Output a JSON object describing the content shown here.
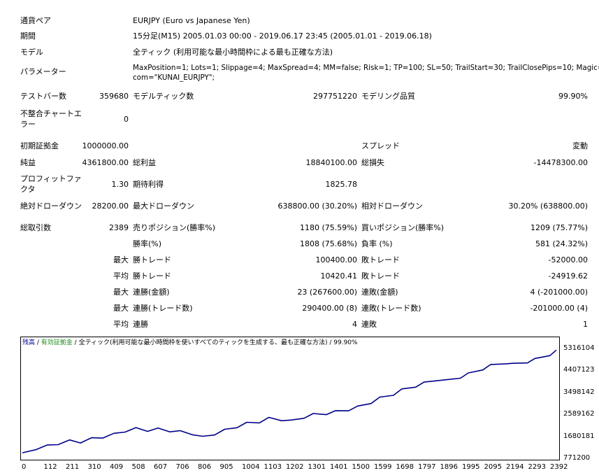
{
  "report": {
    "pair_label": "通貨ペア",
    "pair_value": "EURJPY (Euro vs Japanese Yen)",
    "period_label": "期間",
    "period_value": "15分足(M15) 2005.01.03 00:00 - 2019.06.17 23:45 (2005.01.01 - 2019.06.18)",
    "model_label": "モデル",
    "model_value": "全ティック (利用可能な最小時間枠による最も正確な方法)",
    "params_label": "パラメーター",
    "params_line1": "MaxPosition=1; Lots=1; Slippage=4; MaxSpread=4; MM=false; Risk=1; TP=100; SL=50; TrailStart=30; TrailClosePips=10; Magic=1011;",
    "params_line2": "com=\"KUNAI_EURJPY\";",
    "bars_label": "テストバー数",
    "bars_value": "359680",
    "ticks_label": "モデルティック数",
    "ticks_value": "297751220",
    "quality_label": "モデリング品質",
    "quality_value": "99.90%",
    "mismatch_label_1": "不整合チャートエ",
    "mismatch_label_2": "ラー",
    "mismatch_value": "0",
    "deposit_label": "初期証拠金",
    "deposit_value": "1000000.00",
    "spread_label": "スプレッド",
    "spread_value": "変動",
    "net_label": "純益",
    "net_value": "4361800.00",
    "gross_profit_label": "総利益",
    "gross_profit_value": "18840100.00",
    "gross_loss_label": "総損失",
    "gross_loss_value": "-14478300.00",
    "pf_label_1": "プロフィットファ",
    "pf_label_2": "クタ",
    "pf_value": "1.30",
    "expected_label": "期待利得",
    "expected_value": "1825.78",
    "abs_dd_label": "絶対ドローダウン",
    "abs_dd_value": "28200.00",
    "max_dd_label": "最大ドローダウン",
    "max_dd_value": "638800.00 (30.20%)",
    "rel_dd_label": "相対ドローダウン",
    "rel_dd_value": "30.20% (638800.00)",
    "trades_label": "総取引数",
    "trades_value": "2389",
    "short_label": "売りポジション(勝率%)",
    "short_value": "1180 (75.59%)",
    "long_label": "買いポジション(勝率%)",
    "long_value": "1209 (75.77%)",
    "winrate_label": "勝率(%)",
    "winrate_value": "1808 (75.68%)",
    "lossrate_label": "負率 (%)",
    "lossrate_value": "581 (24.32%)",
    "max_label": "最大",
    "avg_label": "平均",
    "win_trade_label": "勝トレード",
    "loss_trade_label": "敗トレード",
    "largest_win_value": "100400.00",
    "largest_loss_value": "-52000.00",
    "avg_win_value": "10420.41",
    "avg_loss_value": "-24919.62",
    "consec_win_money_label": "連勝(金額)",
    "consec_win_money_value": "23 (267600.00)",
    "consec_loss_money_label": "連敗(金額)",
    "consec_loss_money_value": "4 (-201000.00)",
    "consec_win_count_label": "連勝(トレード数)",
    "consec_win_count_value": "290400.00 (8)",
    "consec_loss_count_label": "連敗(トレード数)",
    "consec_loss_count_value": "-201000.00 (4)",
    "avg_consec_win_label": "連勝",
    "avg_consec_win_value": "4",
    "avg_consec_loss_label": "連敗",
    "avg_consec_loss_value": "1"
  },
  "chart_legend": {
    "balance": "残高",
    "sep1": " / ",
    "equity": "有効証拠金",
    "sep2": " / ",
    "rest": "全ティック(利用可能な最小時間枠を使いすべてのティックを生成する、最も正確な方法) / 99.90%"
  },
  "colors": {
    "balance_line": "#00008b",
    "equity_text": "#228b22"
  },
  "chart_data": {
    "type": "line",
    "title": "",
    "xlabel": "",
    "ylabel": "",
    "x_ticks": [
      "0",
      "112",
      "211",
      "310",
      "409",
      "508",
      "607",
      "706",
      "806",
      "905",
      "1004",
      "1103",
      "1202",
      "1301",
      "1401",
      "1500",
      "1599",
      "1698",
      "1797",
      "1896",
      "1995",
      "2095",
      "2194",
      "2293",
      "2392"
    ],
    "y_ticks": [
      "5316104",
      "4407123",
      "3498142",
      "2589162",
      "1680181",
      "771200"
    ],
    "xlim": [
      0,
      2389
    ],
    "ylim": [
      771200,
      5316104
    ],
    "series": [
      {
        "x": [
          0,
          60,
          112,
          160,
          211,
          260,
          310,
          360,
          409,
          460,
          508,
          560,
          607,
          660,
          706,
          760,
          806,
          860,
          905,
          960,
          1004,
          1060,
          1103,
          1160,
          1202,
          1260,
          1301,
          1360,
          1401,
          1460,
          1500,
          1560,
          1599,
          1660,
          1698,
          1760,
          1797,
          1860,
          1896,
          1960,
          1995,
          2060,
          2095,
          2160,
          2194,
          2260,
          2293,
          2360,
          2389
        ],
        "y": [
          1000000,
          1170000,
          1280000,
          1380000,
          1490000,
          1450000,
          1580000,
          1650000,
          1760000,
          1900000,
          2000000,
          1930000,
          1980000,
          1910000,
          1870000,
          1790000,
          1640000,
          1780000,
          1930000,
          2080000,
          2220000,
          2280000,
          2420000,
          2370000,
          2310000,
          2470000,
          2580000,
          2620000,
          2700000,
          2780000,
          2890000,
          3080000,
          3260000,
          3420000,
          3600000,
          3760000,
          3880000,
          4030000,
          3980000,
          4130000,
          4260000,
          4470000,
          4610000,
          4720000,
          4660000,
          4760000,
          4860000,
          5060000,
          5250000
        ]
      }
    ]
  }
}
